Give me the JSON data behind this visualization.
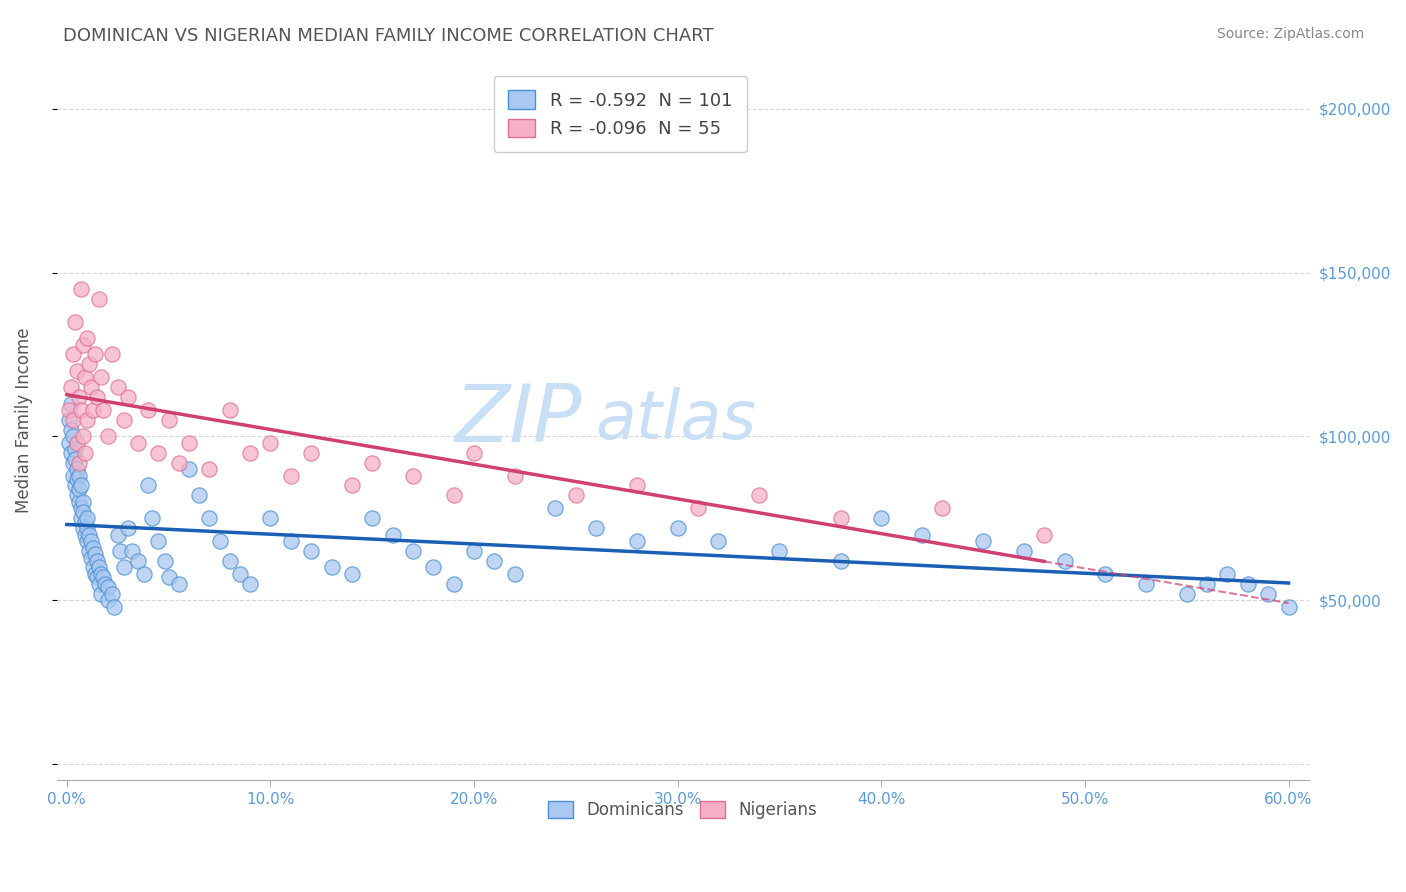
{
  "title": "DOMINICAN VS NIGERIAN MEDIAN FAMILY INCOME CORRELATION CHART",
  "source": "Source: ZipAtlas.com",
  "ylabel": "Median Family Income",
  "xlim": [
    -0.005,
    0.61
  ],
  "ylim": [
    -5000,
    215000
  ],
  "yticks": [
    0,
    50000,
    100000,
    150000,
    200000
  ],
  "ytick_labels": [
    "",
    "$50,000",
    "$100,000",
    "$150,000",
    "$200,000"
  ],
  "xticks": [
    0.0,
    0.1,
    0.2,
    0.3,
    0.4,
    0.5,
    0.6
  ],
  "xtick_labels": [
    "0.0%",
    "10.0%",
    "20.0%",
    "30.0%",
    "40.0%",
    "50.0%",
    "60.0%"
  ],
  "dominican_fill": "#aac8f0",
  "dominican_edge": "#4a90d4",
  "nigerian_fill": "#f5b0c8",
  "nigerian_edge": "#e07090",
  "dominican_line_color": "#1a5fb4",
  "nigerian_line_color": "#d04070",
  "R_dominican": -0.592,
  "N_dominican": 101,
  "R_nigerian": -0.096,
  "N_nigerian": 55,
  "title_color": "#555555",
  "source_color": "#888888",
  "axis_label_color": "#555555",
  "tick_color": "#5b9bd5",
  "watermark": "ZIPatlas",
  "watermark_color": "#c8dff5",
  "background_color": "#ffffff",
  "grid_color": "#cccccc",
  "dominicans_x": [
    0.001,
    0.001,
    0.002,
    0.002,
    0.002,
    0.003,
    0.003,
    0.003,
    0.004,
    0.004,
    0.004,
    0.005,
    0.005,
    0.005,
    0.006,
    0.006,
    0.006,
    0.007,
    0.007,
    0.007,
    0.008,
    0.008,
    0.008,
    0.009,
    0.009,
    0.01,
    0.01,
    0.01,
    0.011,
    0.011,
    0.012,
    0.012,
    0.013,
    0.013,
    0.014,
    0.014,
    0.015,
    0.015,
    0.016,
    0.016,
    0.017,
    0.017,
    0.018,
    0.019,
    0.02,
    0.02,
    0.022,
    0.023,
    0.025,
    0.026,
    0.028,
    0.03,
    0.032,
    0.035,
    0.038,
    0.04,
    0.042,
    0.045,
    0.048,
    0.05,
    0.055,
    0.06,
    0.065,
    0.07,
    0.075,
    0.08,
    0.085,
    0.09,
    0.1,
    0.11,
    0.12,
    0.13,
    0.14,
    0.15,
    0.16,
    0.17,
    0.18,
    0.19,
    0.2,
    0.21,
    0.22,
    0.24,
    0.26,
    0.28,
    0.3,
    0.32,
    0.35,
    0.38,
    0.4,
    0.42,
    0.45,
    0.47,
    0.49,
    0.51,
    0.53,
    0.55,
    0.56,
    0.57,
    0.58,
    0.59,
    0.6
  ],
  "dominicans_y": [
    105000,
    98000,
    102000,
    95000,
    110000,
    100000,
    92000,
    88000,
    96000,
    85000,
    93000,
    90000,
    82000,
    87000,
    88000,
    80000,
    84000,
    78000,
    85000,
    75000,
    80000,
    72000,
    77000,
    74000,
    70000,
    72000,
    68000,
    75000,
    70000,
    65000,
    68000,
    63000,
    66000,
    60000,
    64000,
    58000,
    62000,
    57000,
    60000,
    55000,
    58000,
    52000,
    57000,
    55000,
    54000,
    50000,
    52000,
    48000,
    70000,
    65000,
    60000,
    72000,
    65000,
    62000,
    58000,
    85000,
    75000,
    68000,
    62000,
    57000,
    55000,
    90000,
    82000,
    75000,
    68000,
    62000,
    58000,
    55000,
    75000,
    68000,
    65000,
    60000,
    58000,
    75000,
    70000,
    65000,
    60000,
    55000,
    65000,
    62000,
    58000,
    78000,
    72000,
    68000,
    72000,
    68000,
    65000,
    62000,
    75000,
    70000,
    68000,
    65000,
    62000,
    58000,
    55000,
    52000,
    55000,
    58000,
    55000,
    52000,
    48000
  ],
  "nigerians_x": [
    0.001,
    0.002,
    0.003,
    0.003,
    0.004,
    0.005,
    0.005,
    0.006,
    0.006,
    0.007,
    0.007,
    0.008,
    0.008,
    0.009,
    0.009,
    0.01,
    0.01,
    0.011,
    0.012,
    0.013,
    0.014,
    0.015,
    0.016,
    0.017,
    0.018,
    0.02,
    0.022,
    0.025,
    0.028,
    0.03,
    0.035,
    0.04,
    0.045,
    0.05,
    0.055,
    0.06,
    0.07,
    0.08,
    0.09,
    0.1,
    0.11,
    0.12,
    0.14,
    0.15,
    0.17,
    0.19,
    0.2,
    0.22,
    0.25,
    0.28,
    0.31,
    0.34,
    0.38,
    0.43,
    0.48
  ],
  "nigerians_y": [
    108000,
    115000,
    125000,
    105000,
    135000,
    120000,
    98000,
    112000,
    92000,
    145000,
    108000,
    128000,
    100000,
    118000,
    95000,
    130000,
    105000,
    122000,
    115000,
    108000,
    125000,
    112000,
    142000,
    118000,
    108000,
    100000,
    125000,
    115000,
    105000,
    112000,
    98000,
    108000,
    95000,
    105000,
    92000,
    98000,
    90000,
    108000,
    95000,
    98000,
    88000,
    95000,
    85000,
    92000,
    88000,
    82000,
    95000,
    88000,
    82000,
    85000,
    78000,
    82000,
    75000,
    78000,
    70000
  ],
  "legend_label_dom": "R = -0.592  N = 101",
  "legend_label_nig": "R = -0.096  N = 55"
}
